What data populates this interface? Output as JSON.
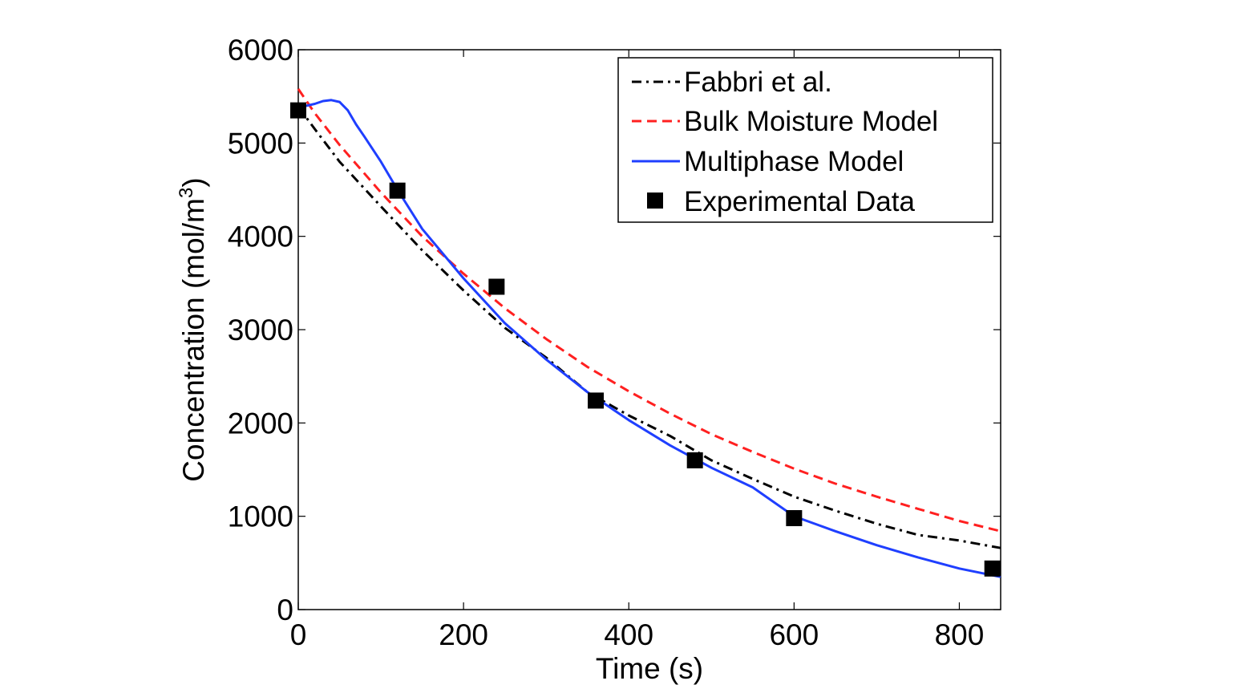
{
  "chart_data": {
    "type": "line",
    "title": "",
    "xlabel": "Time (s)",
    "ylabel": "Concentration (mol/m",
    "ylabel_superscript": "3",
    "ylabel_suffix": ")",
    "xlim": [
      0,
      850
    ],
    "ylim": [
      0,
      6000
    ],
    "xticks": [
      0,
      200,
      400,
      600,
      800
    ],
    "yticks": [
      0,
      1000,
      2000,
      3000,
      4000,
      5000,
      6000
    ],
    "grid": false,
    "legend_position": "top-right",
    "series": [
      {
        "name": "Fabbri et al.",
        "style": "dashdot",
        "color": "#000000",
        "x": [
          0,
          20,
          50,
          100,
          150,
          200,
          250,
          300,
          350,
          400,
          450,
          500,
          550,
          600,
          650,
          700,
          750,
          800,
          850
        ],
        "y": [
          5390,
          5150,
          4800,
          4320,
          3850,
          3420,
          3020,
          2700,
          2330,
          2080,
          1860,
          1600,
          1400,
          1210,
          1060,
          920,
          800,
          740,
          660
        ]
      },
      {
        "name": "Bulk Moisture Model",
        "style": "dashed",
        "color": "#ff2020",
        "x": [
          0,
          20,
          50,
          100,
          150,
          200,
          250,
          300,
          350,
          400,
          450,
          500,
          550,
          600,
          650,
          700,
          750,
          800,
          850
        ],
        "y": [
          5580,
          5320,
          4980,
          4470,
          4000,
          3600,
          3230,
          2900,
          2600,
          2340,
          2100,
          1880,
          1690,
          1510,
          1350,
          1210,
          1080,
          950,
          840
        ]
      },
      {
        "name": "Multiphase Model",
        "style": "solid",
        "color": "#1f3fff",
        "x": [
          0,
          10,
          20,
          30,
          40,
          50,
          60,
          70,
          80,
          100,
          120,
          150,
          200,
          250,
          300,
          350,
          400,
          450,
          500,
          550,
          600,
          650,
          700,
          750,
          800,
          850
        ],
        "y": [
          5380,
          5400,
          5420,
          5450,
          5460,
          5440,
          5350,
          5200,
          5070,
          4800,
          4500,
          4080,
          3550,
          3070,
          2680,
          2330,
          2030,
          1760,
          1520,
          1310,
          1000,
          840,
          690,
          560,
          440,
          350
        ]
      },
      {
        "name": "Experimental Data",
        "style": "marker",
        "marker": "square",
        "color": "#000000",
        "x": [
          0,
          120,
          240,
          360,
          480,
          600,
          840
        ],
        "y": [
          5350,
          4490,
          3460,
          2240,
          1600,
          980,
          440
        ]
      }
    ]
  }
}
